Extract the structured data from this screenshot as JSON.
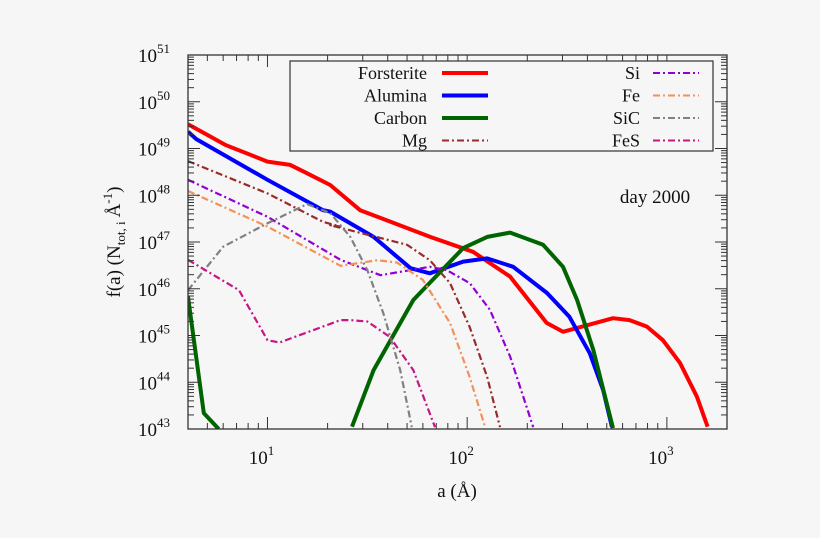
{
  "chart_data": {
    "type": "line",
    "xlabel": "a (Å)",
    "ylabel": "f(a)  (N_tot, i Å^-1)",
    "ylabel_parts": {
      "main": "f(a)  (N",
      "sub": "tot, i",
      "unit": "Å",
      "sup": "-1",
      "close": ")"
    },
    "x_scale": "log",
    "y_scale": "log",
    "xlim": [
      4,
      2000
    ],
    "ylim": [
      1e+43,
      1e+51
    ],
    "x_ticks": [
      {
        "base": "10",
        "exp": "1",
        "value": 10
      },
      {
        "base": "10",
        "exp": "2",
        "value": 100
      },
      {
        "base": "10",
        "exp": "3",
        "value": 1000
      }
    ],
    "y_ticks": [
      {
        "base": "10",
        "exp": "43",
        "value": 43
      },
      {
        "base": "10",
        "exp": "44",
        "value": 44
      },
      {
        "base": "10",
        "exp": "45",
        "value": 45
      },
      {
        "base": "10",
        "exp": "46",
        "value": 46
      },
      {
        "base": "10",
        "exp": "47",
        "value": 47
      },
      {
        "base": "10",
        "exp": "48",
        "value": 48
      },
      {
        "base": "10",
        "exp": "49",
        "value": 49
      },
      {
        "base": "10",
        "exp": "50",
        "value": 50
      },
      {
        "base": "10",
        "exp": "51",
        "value": 51
      }
    ],
    "annotation": "day 2000",
    "grid": false,
    "legend_position": "top",
    "note_values": "y values given as log10 f(a)",
    "series": [
      {
        "name": "Forsterite",
        "color": "#ff0000",
        "style": "solid",
        "x": [
          4,
          6.2,
          10,
          13,
          15.3,
          20.6,
          29.1,
          65.3,
          107,
          164,
          250,
          302,
          537,
          650,
          794,
          955,
          1164,
          1413,
          1600
        ],
        "log_y": [
          49.52,
          49.07,
          48.72,
          48.65,
          48.5,
          48.22,
          47.68,
          47.11,
          46.79,
          46.26,
          45.27,
          45.08,
          45.37,
          45.33,
          45.19,
          44.9,
          44.41,
          43.69,
          43.05
        ]
      },
      {
        "name": "Alumina",
        "color": "#0000ff",
        "style": "solid",
        "x": [
          4,
          4.4,
          10,
          19,
          20.6,
          34,
          52,
          65,
          95.5,
          126,
          170,
          251,
          325,
          411,
          480,
          531
        ],
        "log_y": [
          49.36,
          49.2,
          48.33,
          47.68,
          47.65,
          47.11,
          46.44,
          46.33,
          46.58,
          46.65,
          46.47,
          45.91,
          45.4,
          44.62,
          43.83,
          43.04
        ]
      },
      {
        "name": "Carbon",
        "color": "#006400",
        "style": "solid",
        "x": [
          4,
          4.8,
          5.7
        ],
        "log_y": [
          45.83,
          43.34,
          43.0
        ],
        "x2": [
          26.5,
          34,
          53.7,
          95.5,
          126,
          164,
          240,
          302,
          355,
          428,
          537
        ],
        "log_y2": [
          43.05,
          44.26,
          45.76,
          46.87,
          47.11,
          47.2,
          46.94,
          46.47,
          45.76,
          44.69,
          43.02
        ]
      },
      {
        "name": "Mg",
        "color": "#9b2b2b",
        "style": "dashdot",
        "x": [
          4,
          10,
          19,
          23.2,
          20.6,
          50,
          65,
          82,
          103,
          126,
          146
        ],
        "log_y": [
          48.73,
          48.04,
          47.43,
          47.33,
          47.36,
          46.94,
          46.61,
          46.12,
          45.18,
          44.11,
          43.04
        ]
      },
      {
        "name": "Si",
        "color": "#9400d3",
        "style": "dashdot",
        "x": [
          4,
          10,
          23.2,
          36.8,
          65,
          79,
          103,
          130,
          164,
          214
        ],
        "log_y": [
          48.33,
          47.54,
          46.62,
          46.29,
          46.47,
          46.4,
          46.12,
          45.55,
          44.55,
          43.04
        ]
      },
      {
        "name": "Fe",
        "color": "#f4905a",
        "style": "dashdot",
        "x": [
          4,
          10,
          19,
          23.2,
          35.5,
          44.6,
          60,
          82,
          103,
          123
        ],
        "log_y": [
          48.09,
          47.33,
          46.69,
          46.49,
          46.61,
          46.56,
          46.19,
          45.27,
          44.11,
          43.04
        ]
      },
      {
        "name": "SiC",
        "color": "#808080",
        "style": "dashdot",
        "x": [
          4,
          6,
          10,
          15.8,
          20.6,
          26,
          31.6,
          38,
          46.2,
          52.8
        ],
        "log_y": [
          45.97,
          46.9,
          47.4,
          47.81,
          47.62,
          47.11,
          46.4,
          45.48,
          44.26,
          43.04
        ]
      },
      {
        "name": "FeS",
        "color": "#c71585",
        "style": "dashdot",
        "x": [
          4,
          7.2,
          10,
          11.5,
          23.2,
          26,
          31.6,
          41,
          53.7,
          69
        ],
        "log_y": [
          46.62,
          45.97,
          44.9,
          44.85,
          45.33,
          45.33,
          45.3,
          44.97,
          44.26,
          43.04
        ]
      }
    ]
  }
}
